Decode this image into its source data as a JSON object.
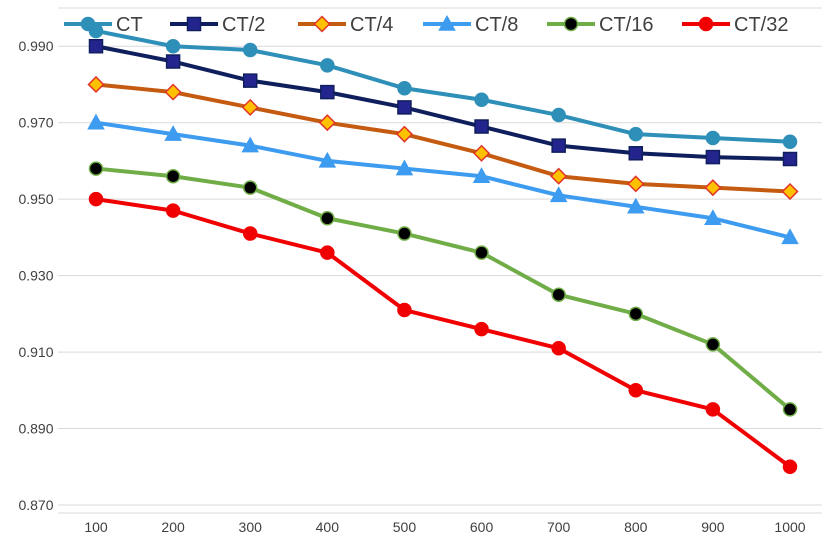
{
  "chart_data": {
    "type": "line",
    "title": "",
    "xlabel": "",
    "ylabel": "",
    "x": [
      100,
      200,
      300,
      400,
      500,
      600,
      700,
      800,
      900,
      1000
    ],
    "x_tick_labels": [
      "100",
      "200",
      "300",
      "400",
      "500",
      "600",
      "700",
      "800",
      "900",
      "1000"
    ],
    "y_tick_labels": [
      "0.870",
      "0.890",
      "0.910",
      "0.930",
      "0.950",
      "0.970",
      "0.990"
    ],
    "ylim": [
      0.87,
      1.0
    ],
    "y_ticks": [
      0.87,
      0.89,
      0.91,
      0.93,
      0.95,
      0.97,
      0.99
    ],
    "grid": true,
    "legend_position": "top",
    "series": [
      {
        "name": "CT",
        "color": "#2E8FB8",
        "marker": "circle",
        "marker_fill": "#2E8FB8",
        "marker_stroke": "#2E8FB8",
        "values": [
          0.994,
          0.99,
          0.989,
          0.985,
          0.979,
          0.976,
          0.972,
          0.967,
          0.966,
          0.965
        ]
      },
      {
        "name": "CT/2",
        "color": "#0F1E5C",
        "marker": "square",
        "marker_fill": "#24248F",
        "marker_stroke": "#0F1E5C",
        "values": [
          0.99,
          0.986,
          0.981,
          0.978,
          0.974,
          0.969,
          0.964,
          0.962,
          0.961,
          0.9605
        ]
      },
      {
        "name": "CT/4",
        "color": "#C55A11",
        "marker": "diamond",
        "marker_fill": "#FFC000",
        "marker_stroke": "#E0342B",
        "values": [
          0.98,
          0.978,
          0.974,
          0.97,
          0.967,
          0.962,
          0.956,
          0.954,
          0.953,
          0.952
        ]
      },
      {
        "name": "CT/8",
        "color": "#3D9BF0",
        "marker": "triangle",
        "marker_fill": "#3D9BF0",
        "marker_stroke": "#3D9BF0",
        "values": [
          0.97,
          0.967,
          0.964,
          0.96,
          0.958,
          0.956,
          0.951,
          0.948,
          0.945,
          0.94
        ]
      },
      {
        "name": "CT/16",
        "color": "#70AD47",
        "marker": "circle",
        "marker_fill": "#000000",
        "marker_stroke": "#70AD47",
        "values": [
          0.958,
          0.956,
          0.953,
          0.945,
          0.941,
          0.936,
          0.925,
          0.92,
          0.912,
          0.895
        ]
      },
      {
        "name": "CT/32",
        "color": "#F00000",
        "marker": "circle",
        "marker_fill": "#F00000",
        "marker_stroke": "#F00000",
        "values": [
          0.95,
          0.947,
          0.941,
          0.936,
          0.921,
          0.916,
          0.911,
          0.9,
          0.895,
          0.88
        ]
      }
    ]
  }
}
